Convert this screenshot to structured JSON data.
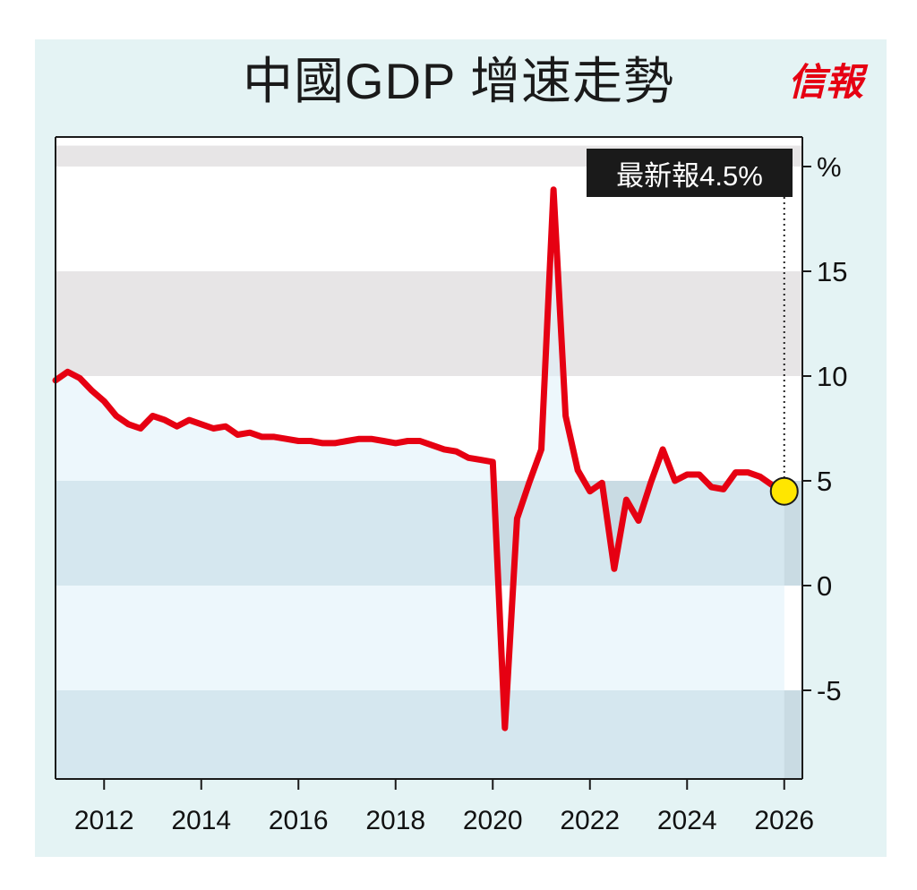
{
  "title": "中國GDP 增速走勢",
  "logo_text": "信報",
  "colors": {
    "line": "#e60012",
    "area": "#dff0f9",
    "band_gray": "#e7e5e6",
    "band_negative": "#c9dbe3",
    "marker": "#ffe600",
    "frame": "#e4f3f4"
  },
  "chart_data": {
    "type": "line",
    "title": "中國GDP 增速走勢",
    "ylabel": "%",
    "ylim": [
      -9.2,
      21
    ],
    "xlim": [
      2011,
      2026.35
    ],
    "y_ticks": [
      {
        "value": 20,
        "label": "%"
      },
      {
        "value": 15,
        "label": "15"
      },
      {
        "value": 10,
        "label": "10"
      },
      {
        "value": 5,
        "label": "5"
      },
      {
        "value": 0,
        "label": "0"
      },
      {
        "value": -5,
        "label": "-5"
      }
    ],
    "x_ticks": [
      2012,
      2014,
      2016,
      2018,
      2020,
      2022,
      2024,
      2026
    ],
    "x_tick_labels": [
      "2012",
      "2014",
      "2016",
      "2018",
      "2020",
      "2022",
      "2024",
      "2026"
    ],
    "annotation": {
      "text": "最新報4.5%",
      "x": 2026.0,
      "y": 4.5
    },
    "series": [
      {
        "points": [
          [
            2011.0,
            9.8
          ],
          [
            2011.25,
            10.2
          ],
          [
            2011.5,
            9.9
          ],
          [
            2011.75,
            9.3
          ],
          [
            2012.0,
            8.8
          ],
          [
            2012.25,
            8.1
          ],
          [
            2012.5,
            7.7
          ],
          [
            2012.75,
            7.5
          ],
          [
            2013.0,
            8.1
          ],
          [
            2013.25,
            7.9
          ],
          [
            2013.5,
            7.6
          ],
          [
            2013.75,
            7.9
          ],
          [
            2014.0,
            7.7
          ],
          [
            2014.25,
            7.5
          ],
          [
            2014.5,
            7.6
          ],
          [
            2014.75,
            7.2
          ],
          [
            2015.0,
            7.3
          ],
          [
            2015.25,
            7.1
          ],
          [
            2015.5,
            7.1
          ],
          [
            2015.75,
            7.0
          ],
          [
            2016.0,
            6.9
          ],
          [
            2016.25,
            6.9
          ],
          [
            2016.5,
            6.8
          ],
          [
            2016.75,
            6.8
          ],
          [
            2017.0,
            6.9
          ],
          [
            2017.25,
            7.0
          ],
          [
            2017.5,
            7.0
          ],
          [
            2017.75,
            6.9
          ],
          [
            2018.0,
            6.8
          ],
          [
            2018.25,
            6.9
          ],
          [
            2018.5,
            6.9
          ],
          [
            2018.75,
            6.7
          ],
          [
            2019.0,
            6.5
          ],
          [
            2019.25,
            6.4
          ],
          [
            2019.5,
            6.1
          ],
          [
            2019.75,
            6.0
          ],
          [
            2020.0,
            5.9
          ],
          [
            2020.25,
            -6.8
          ],
          [
            2020.5,
            3.2
          ],
          [
            2020.75,
            4.9
          ],
          [
            2021.0,
            6.5
          ],
          [
            2021.25,
            18.9
          ],
          [
            2021.5,
            8.1
          ],
          [
            2021.75,
            5.5
          ],
          [
            2022.0,
            4.5
          ],
          [
            2022.25,
            4.9
          ],
          [
            2022.5,
            0.8
          ],
          [
            2022.75,
            4.1
          ],
          [
            2023.0,
            3.1
          ],
          [
            2023.25,
            4.9
          ],
          [
            2023.5,
            6.5
          ],
          [
            2023.75,
            5.0
          ],
          [
            2024.0,
            5.3
          ],
          [
            2024.25,
            5.3
          ],
          [
            2024.5,
            4.7
          ],
          [
            2024.75,
            4.6
          ],
          [
            2025.0,
            5.4
          ],
          [
            2025.25,
            5.4
          ],
          [
            2025.5,
            5.2
          ],
          [
            2025.75,
            4.8
          ],
          [
            2026.0,
            4.5
          ]
        ]
      }
    ]
  }
}
